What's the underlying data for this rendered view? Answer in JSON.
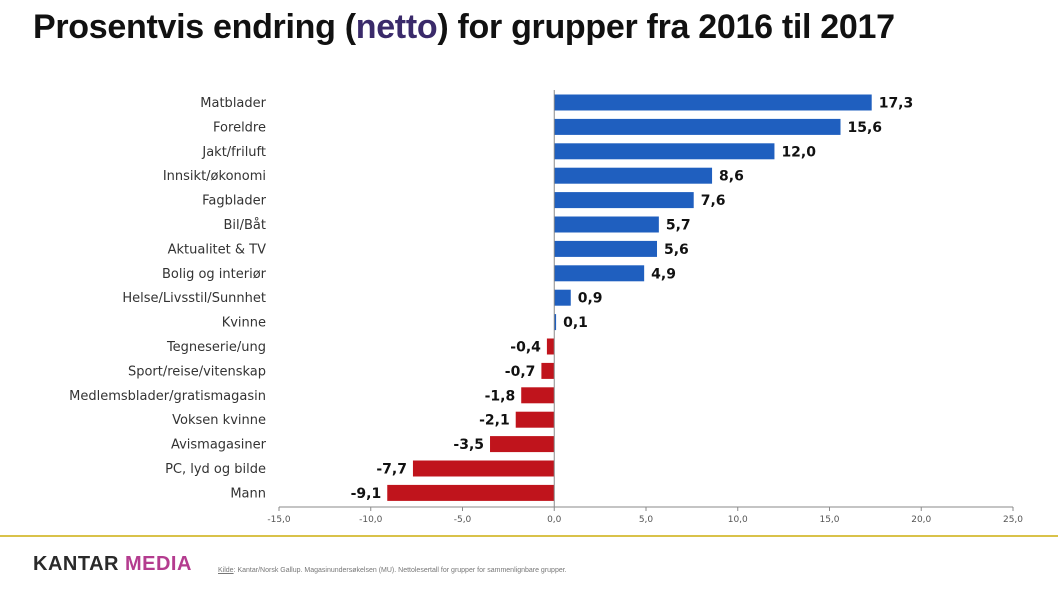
{
  "title": {
    "before": "Prosentvis endring (",
    "highlight": "netto",
    "after": ") for grupper fra 2016 til 2017"
  },
  "footer": {
    "logo_part1": "KANTAR",
    "logo_part2": "MEDIA",
    "source_key": "Kilde",
    "source_text": ": Kantar/Norsk Gallup. Magasinundersøkelsen (MU). Nettoleser­tall for grupper for sammenlignbare grupper."
  },
  "colors": {
    "positive": "#1f5fbf",
    "negative": "#c0141c",
    "brand_purple": "#b43c8f",
    "footer_rule": "#d9c24a"
  },
  "chart_data": {
    "type": "bar",
    "orientation": "horizontal",
    "categories": [
      "Matblader",
      "Foreldre",
      "Jakt/friluft",
      "Innsikt/økonomi",
      "Fagblader",
      "Bil/Båt",
      "Aktualitet & TV",
      "Bolig og interiør",
      "Helse/Livsstil/Sunnhet",
      "Kvinne",
      "Tegneserie/ung",
      "Sport/reise/vitenskap",
      "Medlemsblader/gratismagasin",
      "Voksen kvinne",
      "Avismagasiner",
      "PC, lyd og bilde",
      "Mann"
    ],
    "values": [
      17.3,
      15.6,
      12.0,
      8.6,
      7.6,
      5.7,
      5.6,
      4.9,
      0.9,
      0.1,
      -0.4,
      -0.7,
      -1.8,
      -2.1,
      -3.5,
      -7.7,
      -9.1
    ],
    "value_labels": [
      "17,3",
      "15,6",
      "12,0",
      "8,6",
      "7,6",
      "5,7",
      "5,6",
      "4,9",
      "0,9",
      "0,1",
      "-0,4",
      "-0,7",
      "-1,8",
      "-2,1",
      "-3,5",
      "-7,7",
      "-9,1"
    ],
    "xlim": [
      -15,
      25
    ],
    "xticks": [
      -15,
      -10,
      -5,
      0,
      5,
      10,
      15,
      20,
      25
    ],
    "xtick_labels": [
      "-15,0",
      "-10,0",
      "-5,0",
      "0,0",
      "5,0",
      "10,0",
      "15,0",
      "20,0",
      "25,0"
    ],
    "grid": false,
    "legend": "none"
  }
}
